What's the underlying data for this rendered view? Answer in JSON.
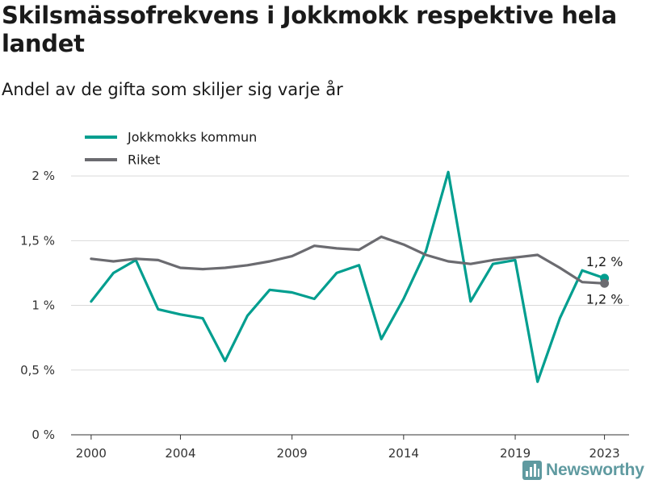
{
  "title": "Skilsmässofrekvens i Jokkmokk respektive hela landet",
  "subtitle": "Andel av de gifta som skiljer sig varje år",
  "brand": "Newsworthy",
  "colors": {
    "jokkmokk": "#009e8f",
    "riket": "#6b6b70",
    "grid": "#d9d9d9",
    "brand": "#5f9aa0"
  },
  "chart_data": {
    "type": "line",
    "x": [
      2000,
      2001,
      2002,
      2003,
      2004,
      2005,
      2006,
      2007,
      2008,
      2009,
      2010,
      2011,
      2012,
      2013,
      2014,
      2015,
      2016,
      2017,
      2018,
      2019,
      2020,
      2021,
      2022,
      2023
    ],
    "xticks": [
      2000,
      2004,
      2009,
      2014,
      2019,
      2023
    ],
    "xtick_labels": [
      "2000",
      "2004",
      "2009",
      "2014",
      "2019",
      "2023"
    ],
    "xlim": [
      1999.1,
      2024.1
    ],
    "ylim": [
      0,
      2.2
    ],
    "yticks": [
      0,
      0.5,
      1,
      1.5,
      2
    ],
    "ytick_labels": [
      "0 %",
      "0,5 %",
      "1 %",
      "1,5 %",
      "2 %"
    ],
    "grid": true,
    "legend_position": "top-left",
    "series": [
      {
        "name": "Jokkmokks kommun",
        "color": "#009e8f",
        "values": [
          1.03,
          1.25,
          1.35,
          0.97,
          0.93,
          0.9,
          0.57,
          0.92,
          1.12,
          1.1,
          1.05,
          1.25,
          1.31,
          0.74,
          1.05,
          1.42,
          2.03,
          1.03,
          1.32,
          1.35,
          0.41,
          0.9,
          1.27,
          1.21
        ],
        "end_label": "1,2 %"
      },
      {
        "name": "Riket",
        "color": "#6b6b70",
        "values": [
          1.36,
          1.34,
          1.36,
          1.35,
          1.29,
          1.28,
          1.29,
          1.31,
          1.34,
          1.38,
          1.46,
          1.44,
          1.43,
          1.53,
          1.47,
          1.39,
          1.34,
          1.32,
          1.35,
          1.37,
          1.39,
          1.29,
          1.18,
          1.17
        ],
        "end_label": "1,2 %"
      }
    ]
  }
}
